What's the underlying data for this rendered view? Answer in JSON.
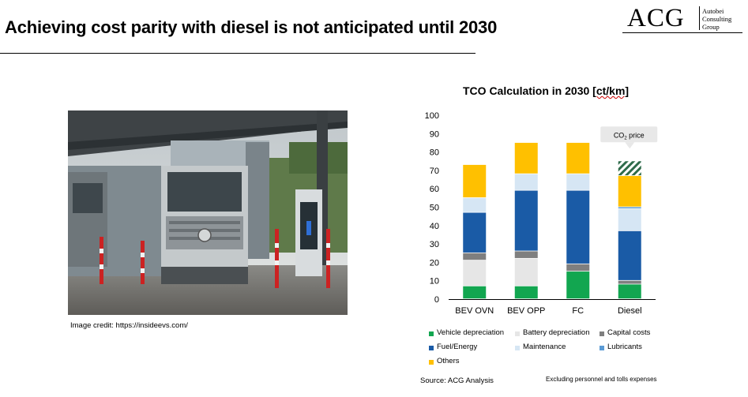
{
  "slide": {
    "title": "Achieving cost parity with diesel is not anticipated until 2030",
    "logo": {
      "main": "ACG",
      "line1": "Autobei",
      "line2": "Consulting",
      "line3": "Group"
    },
    "image_credit": "Image credit: https://insideevs.com/",
    "source": "Source: ACG Analysis",
    "footnote": "Excluding personnel and tolls expenses"
  },
  "chart_data": {
    "type": "bar",
    "stacked": true,
    "title": "TCO Calculation in 2030",
    "title_unit": "[ct/km]",
    "categories": [
      "BEV OVN",
      "BEV OPP",
      "FC",
      "Diesel"
    ],
    "ylim": [
      0,
      100
    ],
    "yticks": [
      0,
      10,
      20,
      30,
      40,
      50,
      60,
      70,
      80,
      90,
      100
    ],
    "series": [
      {
        "name": "Vehicle depreciation",
        "color": "#12a650",
        "values": [
          7,
          7,
          15,
          8
        ]
      },
      {
        "name": "Battery depreciation",
        "color": "#e6e6e6",
        "values": [
          14,
          15,
          0,
          0
        ]
      },
      {
        "name": "Capital costs",
        "color": "#7f7f7f",
        "values": [
          4,
          4,
          4,
          2
        ]
      },
      {
        "name": "Fuel/Energy",
        "color": "#1a5ba6",
        "values": [
          22,
          33,
          40,
          27
        ]
      },
      {
        "name": "Maintenance",
        "color": "#d6e6f4",
        "values": [
          8,
          9,
          9,
          12
        ]
      },
      {
        "name": "Lubricants",
        "color": "#5b9bd5",
        "values": [
          0,
          0,
          0,
          1
        ]
      },
      {
        "name": "Others",
        "color": "#ffc000",
        "values": [
          18,
          17,
          17,
          17
        ]
      }
    ],
    "annotation": {
      "label": "CO",
      "subscript": "2",
      "label_suffix": " price",
      "category": "Diesel",
      "from": 67,
      "to": 75
    },
    "legend_position": "bottom",
    "grid": false
  }
}
